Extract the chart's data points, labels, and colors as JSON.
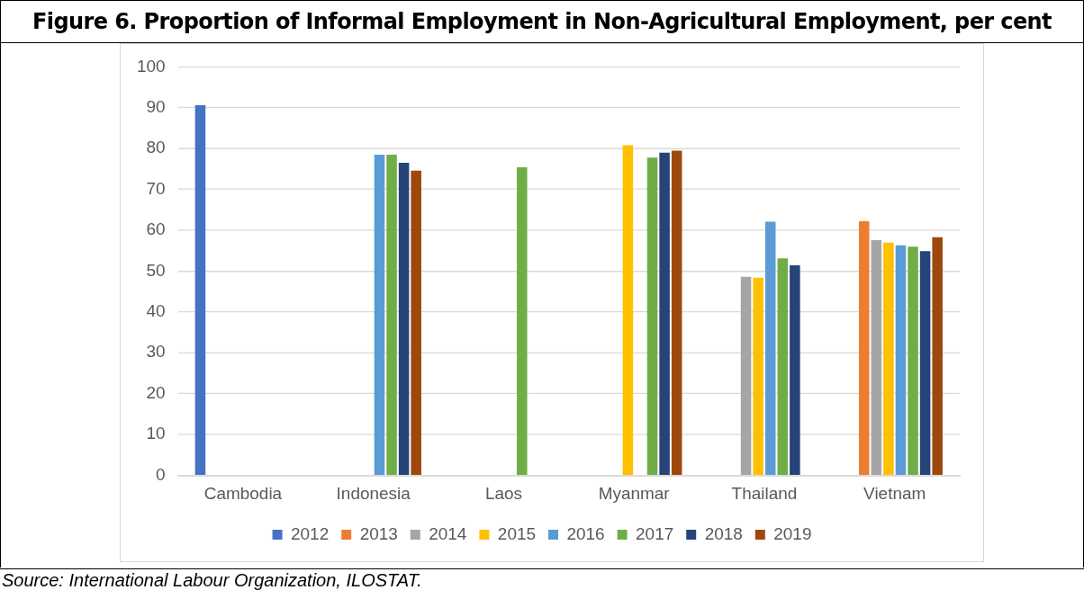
{
  "chart_data": {
    "type": "bar",
    "title": "Figure 6. Proportion of Informal Employment in Non-Agricultural Employment, per cent",
    "categories": [
      "Cambodia",
      "Indonesia",
      "Laos",
      "Myanmar",
      "Thailand",
      "Vietnam"
    ],
    "series": [
      {
        "name": "2012",
        "color": "#4472c4",
        "values": [
          90.6,
          null,
          null,
          null,
          null,
          null
        ]
      },
      {
        "name": "2013",
        "color": "#ed7d31",
        "values": [
          null,
          null,
          null,
          null,
          null,
          62.2
        ]
      },
      {
        "name": "2014",
        "color": "#a5a5a5",
        "values": [
          null,
          null,
          null,
          null,
          48.6,
          57.6
        ]
      },
      {
        "name": "2015",
        "color": "#ffc000",
        "values": [
          null,
          null,
          null,
          80.8,
          48.4,
          57.0
        ]
      },
      {
        "name": "2016",
        "color": "#5b9bd5",
        "values": [
          null,
          78.5,
          null,
          null,
          62.1,
          56.3
        ]
      },
      {
        "name": "2017",
        "color": "#70ad47",
        "values": [
          null,
          78.5,
          75.4,
          77.8,
          53.1,
          56.0
        ]
      },
      {
        "name": "2018",
        "color": "#264478",
        "values": [
          null,
          76.5,
          null,
          79.0,
          51.4,
          54.9
        ]
      },
      {
        "name": "2019",
        "color": "#9e480e",
        "values": [
          null,
          74.6,
          null,
          79.5,
          null,
          58.3
        ]
      }
    ],
    "ylim": [
      0,
      100
    ],
    "yticks": [
      0,
      10,
      20,
      30,
      40,
      50,
      60,
      70,
      80,
      90,
      100
    ],
    "grid": "y",
    "legend": "bottom",
    "annotations": [
      "Source: International Labour Organization, ILOSTAT."
    ]
  }
}
